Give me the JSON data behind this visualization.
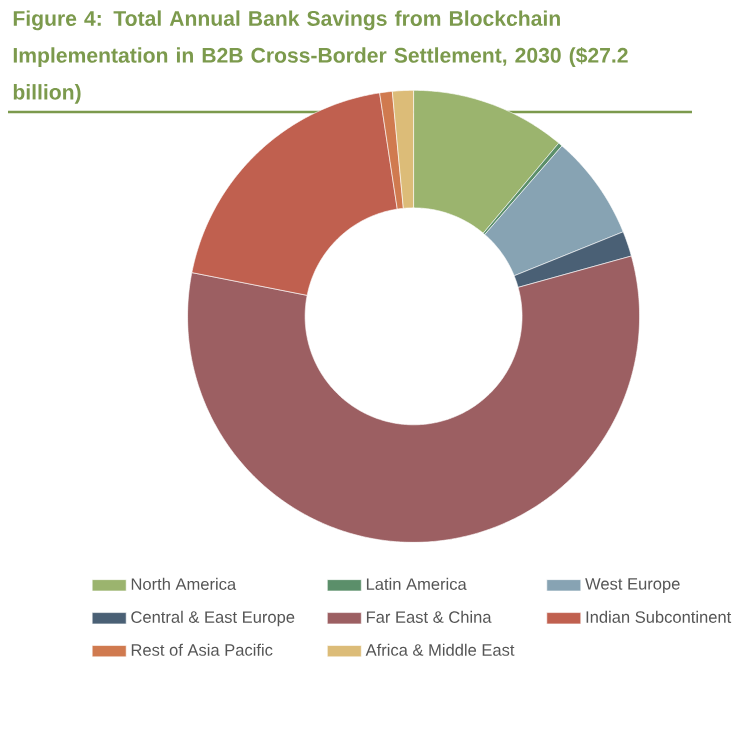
{
  "chart_data": {
    "type": "donut",
    "title": "Figure 4: Total Annual Bank Savings from Blockchain Implementation in B2B Cross-Border Settlement, 2030 ($27.2 billion)",
    "categories": [
      "North America",
      "Latin America",
      "West Europe",
      "Central & East Europe",
      "Far East & China",
      "Indian Subcontinent",
      "Rest of Asia Pacific",
      "Africa & Middle East"
    ],
    "values": [
      11.1,
      0.3,
      7.5,
      1.8,
      57.4,
      19.5,
      0.9,
      1.5
    ],
    "colors": [
      "#9bb46e",
      "#5b8f6a",
      "#87a3b3",
      "#4a6075",
      "#9c5f62",
      "#c0604f",
      "#d07a4f",
      "#dcbc78"
    ],
    "legend": "bottom"
  }
}
